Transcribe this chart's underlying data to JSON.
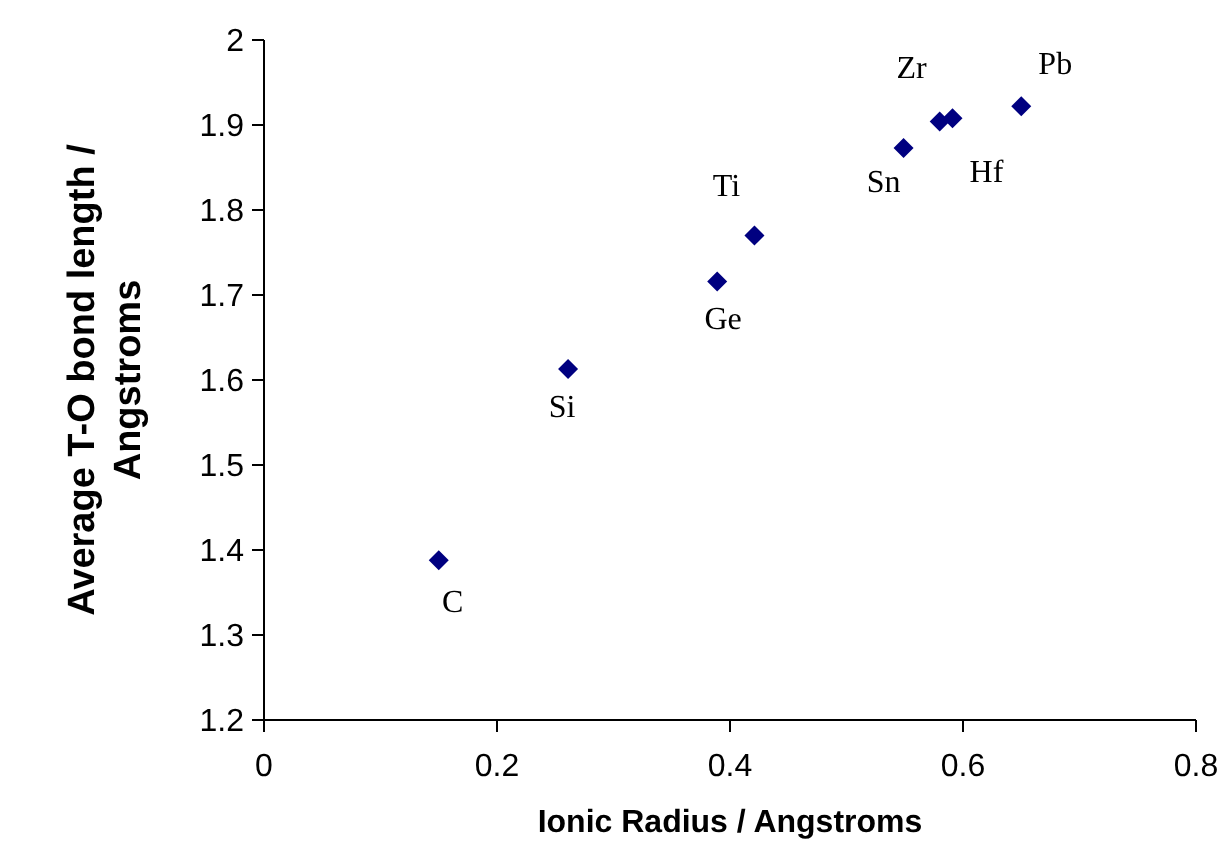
{
  "chart_data": {
    "type": "scatter",
    "xlabel": "Ionic Radius / Angstroms",
    "ylabel": "Average T-O bond length / Angstroms",
    "xlim": [
      0,
      0.8
    ],
    "xticks": [
      0,
      0.2,
      0.4,
      0.6,
      0.8
    ],
    "ylim": [
      1.2,
      2
    ],
    "yticks": [
      1.2,
      1.3,
      1.4,
      1.5,
      1.6,
      1.7,
      1.8,
      1.9,
      2
    ],
    "marker": "diamond",
    "series": [
      {
        "color": "#000080",
        "x": [
          0.15,
          0.261,
          0.389,
          0.421,
          0.549,
          0.58,
          0.591,
          0.65
        ],
        "values": [
          1.388,
          1.613,
          1.716,
          1.77,
          1.873,
          1.904,
          1.908,
          1.922
        ]
      }
    ],
    "annotations": [
      {
        "text": "C",
        "x": 0.15,
        "y": 1.388
      },
      {
        "text": "Si",
        "x": 0.261,
        "y": 1.613
      },
      {
        "text": "Ge",
        "x": 0.389,
        "y": 1.716
      },
      {
        "text": "Ti",
        "x": 0.421,
        "y": 1.77
      },
      {
        "text": "Sn",
        "x": 0.549,
        "y": 1.873
      },
      {
        "text": "Zr",
        "x": 0.58,
        "y": 1.904
      },
      {
        "text": "Hf",
        "x": 0.591,
        "y": 1.908
      },
      {
        "text": "Pb",
        "x": 0.65,
        "y": 1.922
      }
    ]
  }
}
